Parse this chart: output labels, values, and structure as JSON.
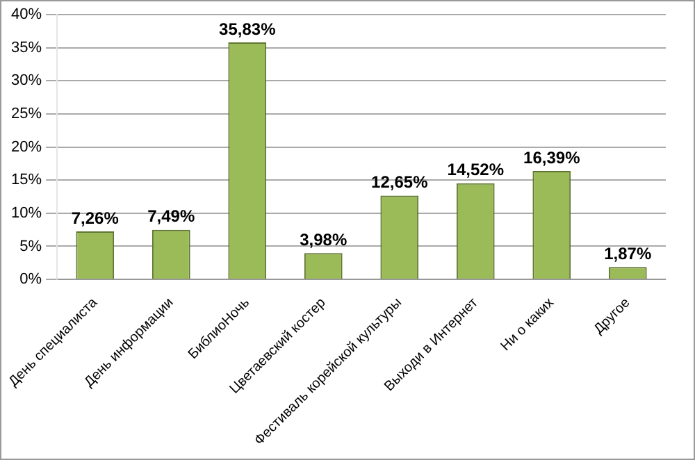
{
  "chart_data": {
    "type": "bar",
    "categories": [
      "День специалиста",
      "День информации",
      "БиблиоНочь",
      "Цветаевский костер",
      "Фестиваль корейской культуры",
      "Выходи в Интернет",
      "Ни о каких",
      "Другое"
    ],
    "values": [
      7.26,
      7.49,
      35.83,
      3.98,
      12.65,
      14.52,
      16.39,
      1.87
    ],
    "value_labels": [
      "7,26%",
      "7,49%",
      "35,83%",
      "3,98%",
      "12,65%",
      "14,52%",
      "16,39%",
      "1,87%"
    ],
    "color": "#9bbb59",
    "ylim": [
      0,
      40
    ],
    "yticks": [
      {
        "value": 0,
        "label": "0%"
      },
      {
        "value": 5,
        "label": "5%"
      },
      {
        "value": 10,
        "label": "10%"
      },
      {
        "value": 15,
        "label": "15%"
      },
      {
        "value": 20,
        "label": "20%"
      },
      {
        "value": 25,
        "label": "25%"
      },
      {
        "value": 30,
        "label": "30%"
      },
      {
        "value": 35,
        "label": "35%"
      },
      {
        "value": 40,
        "label": "40%"
      }
    ],
    "grid": "y"
  }
}
